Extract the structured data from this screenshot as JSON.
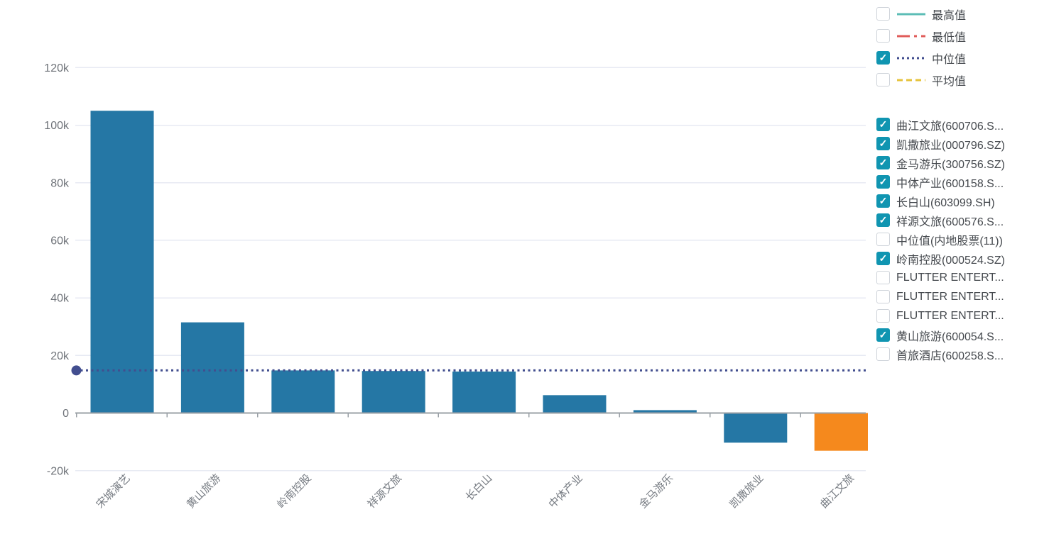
{
  "chart_data": {
    "type": "bar",
    "title": "",
    "xlabel": "",
    "ylabel": "",
    "categories": [
      "宋城演艺",
      "黄山旅游",
      "岭南控股",
      "祥源文旅",
      "长白山",
      "中体产业",
      "金马游乐",
      "凯撒旅业",
      "曲江文旅"
    ],
    "values": [
      105000,
      31500,
      14800,
      14600,
      14400,
      6200,
      1000,
      -10300,
      -13100
    ],
    "bar_default_color": "#2577a5",
    "highlight_bar": {
      "index": 8,
      "category": "曲江文旅",
      "color": "#f5891d"
    },
    "median_line": {
      "label": "中位值",
      "value": 14800,
      "color": "#424e8f",
      "style": "dotted",
      "marker": "dot-left"
    },
    "y_ticks": [
      {
        "label": "120k",
        "value": 120000
      },
      {
        "label": "100k",
        "value": 100000
      },
      {
        "label": "80k",
        "value": 80000
      },
      {
        "label": "60k",
        "value": 60000
      },
      {
        "label": "40k",
        "value": 40000
      },
      {
        "label": "20k",
        "value": 20000
      },
      {
        "label": "0",
        "value": 0
      },
      {
        "label": "-20k",
        "value": -20000
      }
    ],
    "ylim": [
      -20000,
      120000
    ],
    "grid": true,
    "legend_position": "right"
  },
  "legend_lines": [
    {
      "label": "最高值",
      "checked": false,
      "color": "#5cbdb6",
      "style": "solid"
    },
    {
      "label": "最低值",
      "checked": false,
      "color": "#e05c5a",
      "style": "dashdot"
    },
    {
      "label": "中位值",
      "checked": true,
      "color": "#424e8f",
      "style": "dotted"
    },
    {
      "label": "平均值",
      "checked": false,
      "color": "#e6c33c",
      "style": "dashed"
    }
  ],
  "legend_series": [
    {
      "label": "曲江文旅(600706.S...",
      "checked": true
    },
    {
      "label": "凯撒旅业(000796.SZ)",
      "checked": true
    },
    {
      "label": "金马游乐(300756.SZ)",
      "checked": true
    },
    {
      "label": "中体产业(600158.S...",
      "checked": true
    },
    {
      "label": "长白山(603099.SH)",
      "checked": true
    },
    {
      "label": "祥源文旅(600576.S...",
      "checked": true
    },
    {
      "label": "中位值(内地股票(11))",
      "checked": false
    },
    {
      "label": "岭南控股(000524.SZ)",
      "checked": true
    },
    {
      "label": "FLUTTER ENTERT...",
      "checked": false
    },
    {
      "label": "FLUTTER ENTERT...",
      "checked": false
    },
    {
      "label": "FLUTTER ENTERT...",
      "checked": false
    },
    {
      "label": "黄山旅游(600054.S...",
      "checked": true
    },
    {
      "label": "首旅酒店(600258.S...",
      "checked": false
    }
  ],
  "colors": {
    "checkbox_checked": "#1095b1",
    "axis_line": "#9aa0a6",
    "grid_line": "#e7eaf3",
    "y_tick_label": "#6f7379",
    "x_tick_label": "#767b82"
  },
  "icons": {
    "checkmark": "✓"
  }
}
